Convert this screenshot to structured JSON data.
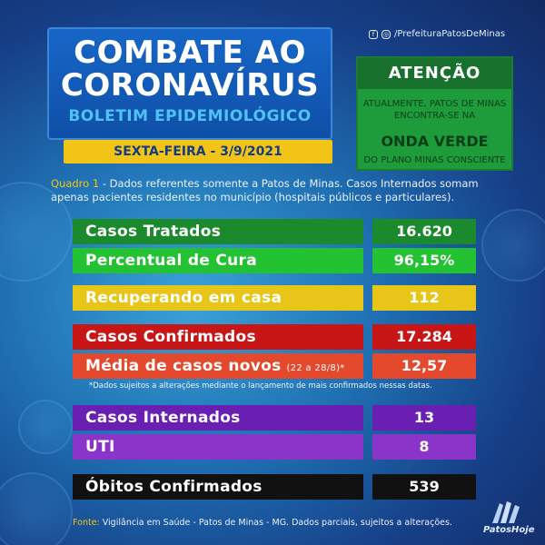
{
  "header": {
    "title_line1": "COMBATE AO",
    "title_line2": "CORONAVÍRUS",
    "subtitle": "BOLETIM EPIDEMIOLÓGICO",
    "date": "SEXTA-FEIRA - 3/9/2021"
  },
  "social": {
    "handle": "/PrefeituraPatosDeMinas",
    "icons": [
      "facebook-icon",
      "instagram-icon"
    ]
  },
  "attention": {
    "title": "ATENÇÃO",
    "text1": "ATUALMENTE, PATOS DE MINAS ENCONTRA-SE NA",
    "highlight": "ONDA VERDE",
    "text2": "DO PLANO MINAS CONSCIENTE"
  },
  "intro": {
    "label": "Quadro 1",
    "text": " - Dados referentes somente a Patos de Minas. Casos Internados somam apenas pacientes residentes no município (hospitais públicos e particulares)."
  },
  "rows": [
    {
      "label": "Casos Tratados",
      "value": "16.620",
      "color": "#1a8a2c"
    },
    {
      "label": "Percentual de Cura",
      "value": "96,15%",
      "color": "#23c232"
    },
    {
      "label": "Recuperando em casa",
      "value": "112",
      "color": "#e8c619"
    },
    {
      "label": "Casos Confirmados",
      "value": "17.284",
      "color": "#c81616"
    },
    {
      "label": "Média de casos novos",
      "sub": "(22 a 28/8)*",
      "value": "12,57",
      "color": "#e5492d"
    },
    {
      "label": "Casos Internados",
      "value": "13",
      "color": "#6a1fb3"
    },
    {
      "label": "UTI",
      "value": "8",
      "color": "#8a34c9"
    },
    {
      "label": "Óbitos Confirmados",
      "value": "539",
      "color": "#111111"
    }
  ],
  "note": "*Dados sujeitos a alterações mediante o lançamento de mais confirmados nessas datas.",
  "footer": {
    "label": "Fonte:",
    "text": " Vigilância em Saúde - Patos de Minas - MG. Dados parciais, sujeitos a alterações."
  },
  "logo": {
    "text": "PatosHoje"
  }
}
